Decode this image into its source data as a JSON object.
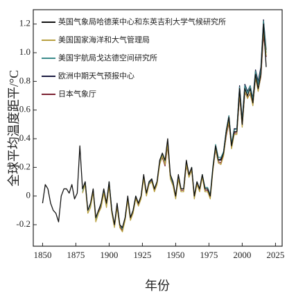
{
  "chart_data": {
    "type": "line",
    "y_label": "全球平均温度距平/°C",
    "x_label": "年份",
    "x": [
      1850,
      1852,
      1854,
      1856,
      1858,
      1860,
      1862,
      1864,
      1866,
      1868,
      1870,
      1872,
      1874,
      1876,
      1878,
      1880,
      1882,
      1884,
      1886,
      1888,
      1890,
      1892,
      1894,
      1896,
      1898,
      1900,
      1902,
      1904,
      1906,
      1908,
      1910,
      1912,
      1914,
      1916,
      1918,
      1920,
      1922,
      1924,
      1926,
      1928,
      1930,
      1932,
      1934,
      1936,
      1938,
      1940,
      1942,
      1944,
      1946,
      1948,
      1950,
      1952,
      1954,
      1956,
      1958,
      1960,
      1962,
      1964,
      1966,
      1968,
      1970,
      1972,
      1974,
      1976,
      1978,
      1980,
      1982,
      1984,
      1986,
      1988,
      1990,
      1992,
      1994,
      1996,
      1998,
      2000,
      2002,
      2004,
      2006,
      2008,
      2010,
      2012,
      2014,
      2016,
      2018
    ],
    "series": [
      {
        "name": "日本气象厅",
        "color": "#7a2030",
        "values": [
          null,
          null,
          null,
          null,
          null,
          null,
          null,
          null,
          null,
          null,
          null,
          null,
          null,
          null,
          null,
          null,
          null,
          null,
          null,
          null,
          null,
          -0.11,
          -0.07,
          0.03,
          -0.07,
          0.08,
          -0.11,
          -0.21,
          -0.07,
          -0.21,
          -0.24,
          -0.16,
          -0.02,
          -0.16,
          -0.11,
          -0.01,
          -0.06,
          -0.01,
          0.13,
          0.01,
          0.09,
          0.11,
          0.04,
          0.09,
          0.23,
          0.27,
          0.21,
          0.35,
          0.13,
          0.08,
          -0.01,
          0.13,
          0.04,
          0.04,
          0.21,
          0.14,
          0.19,
          -0.01,
          0.09,
          0.04,
          0.14,
          0.04,
          0.04,
          -0.01,
          0.19,
          0.32,
          0.24,
          0.23,
          0.29,
          0.42,
          0.51,
          0.34,
          0.44,
          0.44,
          0.7,
          0.49,
          0.72,
          0.69,
          0.71,
          0.64,
          0.82,
          0.74,
          0.83,
          1.12,
          0.97
        ]
      },
      {
        "name": "欧洲中期天气预报中心",
        "color": "#1a1a40",
        "values": [
          null,
          null,
          null,
          null,
          null,
          null,
          null,
          null,
          null,
          null,
          null,
          null,
          null,
          null,
          null,
          null,
          null,
          null,
          null,
          null,
          null,
          null,
          null,
          null,
          null,
          null,
          null,
          null,
          null,
          null,
          null,
          null,
          null,
          null,
          null,
          null,
          null,
          null,
          null,
          null,
          null,
          null,
          null,
          null,
          null,
          null,
          null,
          null,
          null,
          null,
          null,
          null,
          null,
          null,
          null,
          null,
          null,
          null,
          null,
          null,
          null,
          null,
          null,
          null,
          null,
          0.34,
          0.25,
          0.26,
          0.31,
          0.46,
          0.56,
          0.36,
          0.47,
          0.47,
          0.77,
          0.53,
          0.78,
          0.73,
          0.77,
          0.68,
          0.88,
          0.8,
          0.9,
          1.23,
          1.02
        ]
      },
      {
        "name": "美国宇航局戈达德空间研究所",
        "color": "#3a8a8a",
        "values": [
          null,
          null,
          null,
          null,
          null,
          null,
          null,
          null,
          null,
          null,
          null,
          null,
          null,
          null,
          null,
          0.03,
          0.1,
          -0.1,
          -0.06,
          0.04,
          -0.16,
          -0.1,
          -0.06,
          0.04,
          -0.06,
          0.1,
          -0.1,
          -0.2,
          -0.06,
          -0.2,
          -0.23,
          -0.15,
          -0.01,
          -0.15,
          -0.1,
          0.0,
          -0.05,
          0.0,
          0.14,
          0.01,
          0.09,
          0.12,
          0.05,
          0.1,
          0.24,
          0.29,
          0.24,
          0.38,
          0.14,
          0.09,
          0.0,
          0.14,
          0.05,
          0.05,
          0.24,
          0.15,
          0.2,
          0.0,
          0.1,
          0.05,
          0.15,
          0.06,
          0.06,
          0.01,
          0.21,
          0.36,
          0.27,
          0.27,
          0.31,
          0.46,
          0.56,
          0.37,
          0.46,
          0.47,
          0.76,
          0.52,
          0.77,
          0.72,
          0.77,
          0.67,
          0.87,
          0.78,
          0.88,
          1.22,
          1.0
        ]
      },
      {
        "name": "美国国家海洋和大气管理局",
        "color": "#b8a040",
        "values": [
          null,
          null,
          null,
          null,
          null,
          null,
          null,
          null,
          null,
          null,
          null,
          null,
          null,
          null,
          null,
          0.02,
          0.08,
          -0.12,
          -0.08,
          0.03,
          -0.18,
          -0.12,
          -0.08,
          0.02,
          -0.08,
          0.07,
          -0.12,
          -0.22,
          -0.08,
          -0.22,
          -0.25,
          -0.17,
          -0.03,
          -0.17,
          -0.12,
          -0.02,
          -0.07,
          -0.02,
          0.12,
          0.0,
          0.08,
          0.1,
          0.03,
          0.08,
          0.22,
          0.28,
          0.22,
          0.36,
          0.12,
          0.07,
          -0.02,
          0.12,
          0.03,
          0.03,
          0.22,
          0.13,
          0.18,
          -0.02,
          0.08,
          0.03,
          0.13,
          0.03,
          0.03,
          -0.02,
          0.18,
          0.33,
          0.23,
          0.22,
          0.28,
          0.43,
          0.52,
          0.33,
          0.43,
          0.43,
          0.72,
          0.48,
          0.73,
          0.68,
          0.72,
          0.63,
          0.83,
          0.73,
          0.84,
          1.15,
          0.98
        ]
      },
      {
        "name": "英国气象局哈德莱中心和东英吉利大学气候研究所",
        "color": "#111111",
        "values": [
          -0.05,
          0.08,
          0.05,
          -0.05,
          -0.1,
          -0.12,
          -0.18,
          0.0,
          0.05,
          0.05,
          0.02,
          0.08,
          -0.02,
          0.02,
          0.35,
          0.05,
          0.1,
          -0.1,
          -0.05,
          0.05,
          -0.15,
          -0.1,
          -0.05,
          0.05,
          -0.05,
          0.1,
          -0.1,
          -0.2,
          -0.05,
          -0.2,
          -0.22,
          -0.15,
          0.0,
          -0.15,
          -0.1,
          0.0,
          -0.05,
          0.0,
          0.15,
          0.02,
          0.1,
          0.12,
          0.05,
          0.1,
          0.25,
          0.3,
          0.25,
          0.4,
          0.15,
          0.1,
          0.0,
          0.15,
          0.05,
          0.05,
          0.25,
          0.15,
          0.2,
          0.0,
          0.1,
          0.05,
          0.15,
          0.05,
          0.05,
          0.0,
          0.2,
          0.35,
          0.25,
          0.25,
          0.3,
          0.45,
          0.55,
          0.35,
          0.45,
          0.45,
          0.75,
          0.5,
          0.75,
          0.7,
          0.75,
          0.65,
          0.85,
          0.75,
          0.85,
          1.2,
          0.9
        ]
      }
    ],
    "legend_order": [
      4,
      3,
      2,
      1,
      0
    ],
    "xlim": [
      1843,
      2030
    ],
    "xticks": [
      1850,
      1875,
      1900,
      1925,
      1950,
      1975,
      2000,
      2025
    ],
    "ylim": [
      -0.35,
      1.3
    ],
    "yticks": [
      -0.2,
      0,
      0.2,
      0.4,
      0.6,
      0.8,
      {
        "value": 1,
        "label": "1.0"
      },
      1.2
    ]
  }
}
